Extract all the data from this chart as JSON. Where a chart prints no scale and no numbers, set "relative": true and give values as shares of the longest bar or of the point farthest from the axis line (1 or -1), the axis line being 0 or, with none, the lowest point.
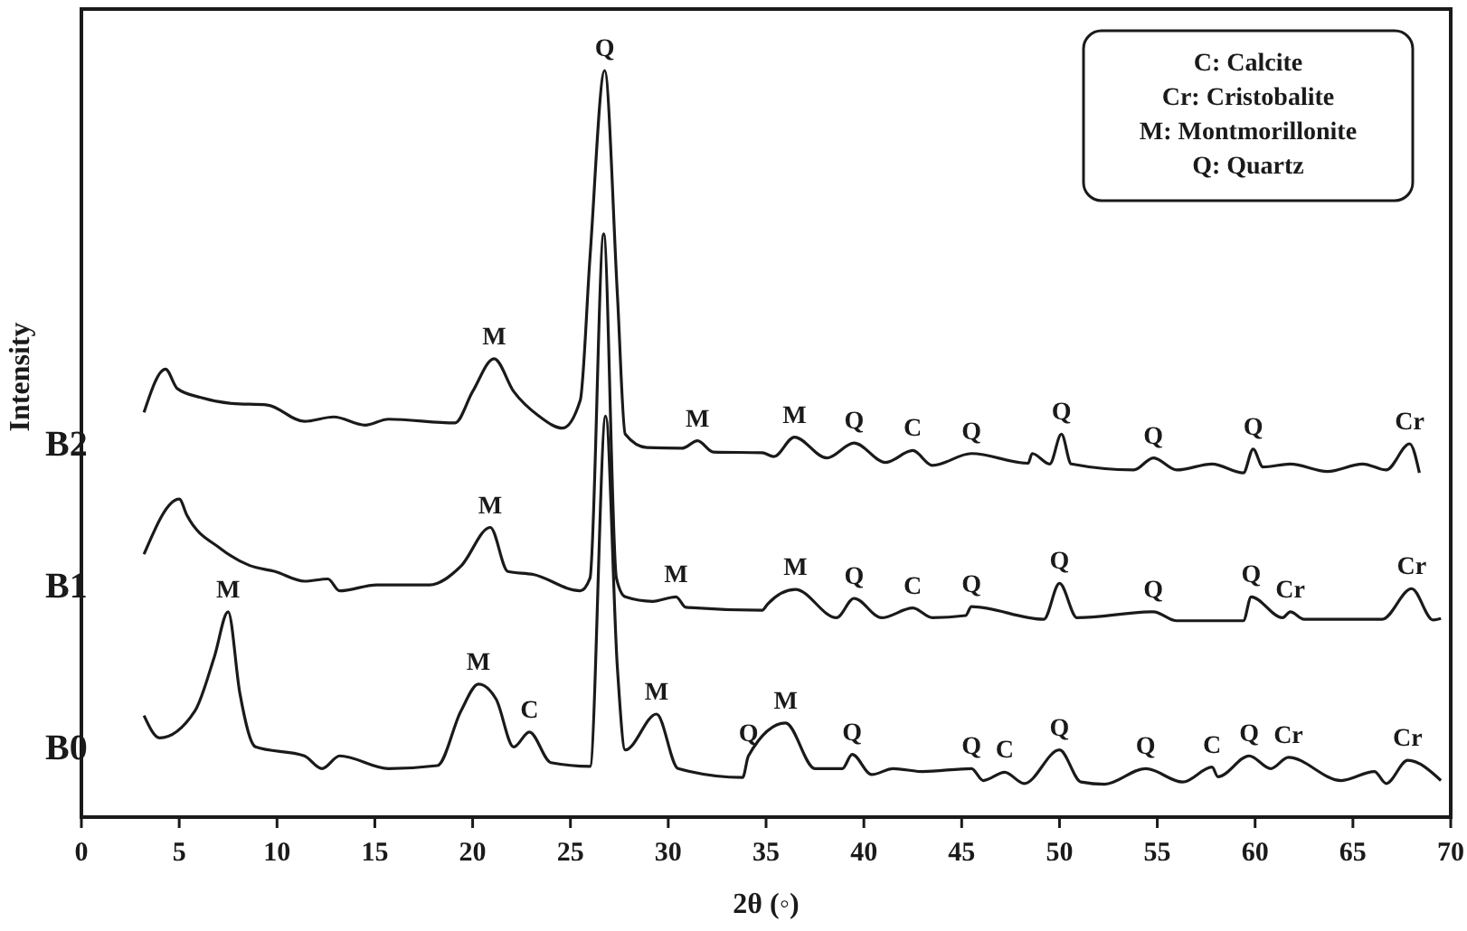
{
  "chart_data": {
    "type": "line",
    "relative": true,
    "xlabel": "2θ (◦)",
    "ylabel": "Intensity",
    "xlim": [
      0,
      70
    ],
    "xticks": [
      0,
      5,
      10,
      15,
      20,
      25,
      30,
      35,
      40,
      45,
      50,
      55,
      60,
      65,
      70
    ],
    "series": [
      {
        "name": "B2",
        "color": "#1a1a1a",
        "x": [
          3.2,
          4.3,
          4.9,
          6.1,
          7.7,
          9.5,
          11.4,
          12.9,
          14.5,
          15.7,
          19.1,
          20.0,
          21.1,
          22.1,
          23.4,
          24.6,
          25.5,
          26.0,
          26.75,
          27.4,
          27.8,
          28.9,
          30.7,
          31.5,
          32.3,
          34.8,
          35.4,
          36.45,
          38.1,
          39.5,
          41.1,
          42.5,
          43.5,
          45.5,
          48.4,
          48.6,
          49.5,
          50.1,
          50.6,
          53.8,
          54.8,
          56.0,
          57.8,
          59.4,
          59.9,
          60.4,
          61.8,
          63.7,
          65.5,
          66.7,
          67.9,
          68.4
        ],
        "values": [
          0.542,
          0.6,
          0.574,
          0.562,
          0.554,
          0.552,
          0.53,
          0.536,
          0.525,
          0.533,
          0.528,
          0.57,
          0.614,
          0.57,
          0.537,
          0.521,
          0.558,
          0.75,
          1.0,
          0.7,
          0.513,
          0.495,
          0.494,
          0.504,
          0.489,
          0.488,
          0.483,
          0.509,
          0.481,
          0.501,
          0.475,
          0.491,
          0.471,
          0.487,
          0.474,
          0.487,
          0.473,
          0.513,
          0.473,
          0.465,
          0.481,
          0.465,
          0.473,
          0.461,
          0.493,
          0.469,
          0.473,
          0.463,
          0.473,
          0.465,
          0.5,
          0.461
        ]
      },
      {
        "name": "B1",
        "color": "#1a1a1a",
        "x": [
          3.2,
          5.0,
          5.4,
          7.1,
          8.6,
          9.9,
          11.4,
          12.6,
          13.2,
          15.1,
          17.8,
          19.4,
          20.9,
          21.8,
          23.1,
          25.5,
          26.0,
          26.7,
          27.35,
          27.8,
          29.2,
          30.4,
          30.9,
          34.8,
          35.1,
          36.5,
          38.6,
          39.5,
          40.9,
          42.5,
          43.5,
          45.2,
          45.5,
          49.2,
          50.0,
          50.9,
          54.8,
          56.0,
          59.4,
          59.8,
          61.4,
          61.8,
          62.5,
          66.5,
          68.0,
          69.1,
          69.5
        ],
        "values": [
          0.352,
          0.426,
          0.404,
          0.36,
          0.337,
          0.329,
          0.316,
          0.319,
          0.303,
          0.311,
          0.311,
          0.336,
          0.388,
          0.329,
          0.325,
          0.303,
          0.32,
          0.781,
          0.32,
          0.295,
          0.289,
          0.295,
          0.281,
          0.277,
          0.286,
          0.305,
          0.267,
          0.293,
          0.267,
          0.28,
          0.267,
          0.27,
          0.282,
          0.265,
          0.313,
          0.267,
          0.275,
          0.263,
          0.263,
          0.295,
          0.267,
          0.275,
          0.265,
          0.265,
          0.306,
          0.264,
          0.266
        ]
      },
      {
        "name": "B0",
        "color": "#1a1a1a",
        "x": [
          3.2,
          4.0,
          5.8,
          6.8,
          7.5,
          8.1,
          8.9,
          11.4,
          12.3,
          13.2,
          15.7,
          18.2,
          19.4,
          20.3,
          21.2,
          22.1,
          22.9,
          24.0,
          26.0,
          26.8,
          27.4,
          27.8,
          29.4,
          30.5,
          33.8,
          34.1,
          36.0,
          37.5,
          38.9,
          39.4,
          40.4,
          41.5,
          43.0,
          45.5,
          46.1,
          47.2,
          48.2,
          50.0,
          51.1,
          52.3,
          54.4,
          56.3,
          57.8,
          58.1,
          59.7,
          60.8,
          61.7,
          64.4,
          66.1,
          66.7,
          67.8,
          69.5
        ],
        "values": [
          0.136,
          0.106,
          0.142,
          0.215,
          0.275,
          0.166,
          0.094,
          0.082,
          0.065,
          0.082,
          0.065,
          0.069,
          0.142,
          0.178,
          0.158,
          0.094,
          0.114,
          0.073,
          0.068,
          0.537,
          0.2,
          0.09,
          0.138,
          0.065,
          0.053,
          0.082,
          0.126,
          0.065,
          0.065,
          0.084,
          0.057,
          0.065,
          0.061,
          0.065,
          0.049,
          0.06,
          0.045,
          0.09,
          0.047,
          0.044,
          0.065,
          0.047,
          0.067,
          0.054,
          0.082,
          0.065,
          0.08,
          0.049,
          0.061,
          0.045,
          0.076,
          0.049
        ]
      }
    ],
    "annotations": [
      "C: Calcite",
      "Cr: Cristobalite",
      "M: Montmorillonite",
      "Q: Quartz",
      {
        "text": "M",
        "x": 21.1,
        "y": 0.614
      },
      {
        "text": "Q",
        "x": 26.75,
        "y": 1.0
      },
      {
        "text": "M",
        "x": 31.5,
        "y": 0.504
      },
      {
        "text": "M",
        "x": 36.45,
        "y": 0.509
      },
      {
        "text": "Q",
        "x": 39.5,
        "y": 0.501
      },
      {
        "text": "C",
        "x": 42.5,
        "y": 0.491
      },
      {
        "text": "Q",
        "x": 45.5,
        "y": 0.487
      },
      {
        "text": "Q",
        "x": 50.1,
        "y": 0.513
      },
      {
        "text": "Q",
        "x": 54.8,
        "y": 0.481
      },
      {
        "text": "Q",
        "x": 59.9,
        "y": 0.493
      },
      {
        "text": "Cr",
        "x": 67.9,
        "y": 0.5
      },
      {
        "text": "M",
        "x": 20.9,
        "y": 0.388
      },
      {
        "text": "M",
        "x": 30.4,
        "y": 0.295
      },
      {
        "text": "M",
        "x": 36.5,
        "y": 0.305
      },
      {
        "text": "Q",
        "x": 39.5,
        "y": 0.293
      },
      {
        "text": "C",
        "x": 42.5,
        "y": 0.28
      },
      {
        "text": "Q",
        "x": 45.5,
        "y": 0.282
      },
      {
        "text": "Q",
        "x": 50.0,
        "y": 0.313
      },
      {
        "text": "Q",
        "x": 54.8,
        "y": 0.275
      },
      {
        "text": "Q",
        "x": 59.8,
        "y": 0.295
      },
      {
        "text": "Cr",
        "x": 61.8,
        "y": 0.275
      },
      {
        "text": "Cr",
        "x": 68.0,
        "y": 0.306
      },
      {
        "text": "M",
        "x": 7.5,
        "y": 0.275
      },
      {
        "text": "M",
        "x": 20.3,
        "y": 0.178
      },
      {
        "text": "C",
        "x": 22.9,
        "y": 0.114
      },
      {
        "text": "M",
        "x": 29.4,
        "y": 0.138
      },
      {
        "text": "Q",
        "x": 34.1,
        "y": 0.082
      },
      {
        "text": "M",
        "x": 36.0,
        "y": 0.126
      },
      {
        "text": "Q",
        "x": 39.4,
        "y": 0.084
      },
      {
        "text": "Q",
        "x": 45.5,
        "y": 0.065
      },
      {
        "text": "C",
        "x": 47.2,
        "y": 0.06
      },
      {
        "text": "Q",
        "x": 50.0,
        "y": 0.09
      },
      {
        "text": "Q",
        "x": 54.4,
        "y": 0.065
      },
      {
        "text": "C",
        "x": 57.8,
        "y": 0.067
      },
      {
        "text": "Q",
        "x": 59.7,
        "y": 0.082
      },
      {
        "text": "Cr",
        "x": 61.7,
        "y": 0.08
      },
      {
        "text": "Cr",
        "x": 67.8,
        "y": 0.076
      }
    ]
  }
}
